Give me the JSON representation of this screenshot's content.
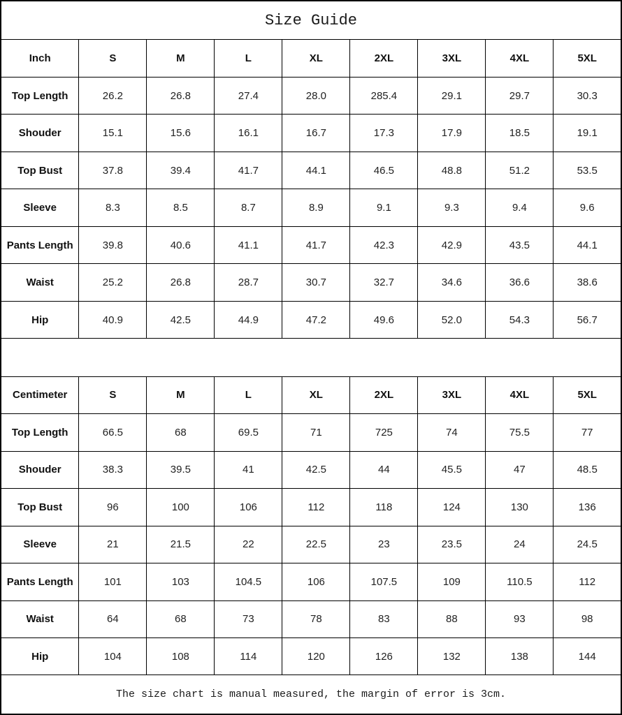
{
  "title": "Size Guide",
  "footer_note": "The size chart is manual measured, the margin of error is 3cm.",
  "colors": {
    "border": "#000000",
    "text": "#1a1a1a",
    "background": "#ffffff"
  },
  "tables": [
    {
      "unit_label": "Inch",
      "columns": [
        "S",
        "M",
        "L",
        "XL",
        "2XL",
        "3XL",
        "4XL",
        "5XL"
      ],
      "rows": [
        {
          "label": "Top Length",
          "values": [
            "26.2",
            "26.8",
            "27.4",
            "28.0",
            "285.4",
            "29.1",
            "29.7",
            "30.3"
          ]
        },
        {
          "label": "Shouder",
          "values": [
            "15.1",
            "15.6",
            "16.1",
            "16.7",
            "17.3",
            "17.9",
            "18.5",
            "19.1"
          ]
        },
        {
          "label": "Top Bust",
          "values": [
            "37.8",
            "39.4",
            "41.7",
            "44.1",
            "46.5",
            "48.8",
            "51.2",
            "53.5"
          ]
        },
        {
          "label": "Sleeve",
          "values": [
            "8.3",
            "8.5",
            "8.7",
            "8.9",
            "9.1",
            "9.3",
            "9.4",
            "9.6"
          ]
        },
        {
          "label": "Pants Length",
          "values": [
            "39.8",
            "40.6",
            "41.1",
            "41.7",
            "42.3",
            "42.9",
            "43.5",
            "44.1"
          ]
        },
        {
          "label": "Waist",
          "values": [
            "25.2",
            "26.8",
            "28.7",
            "30.7",
            "32.7",
            "34.6",
            "36.6",
            "38.6"
          ]
        },
        {
          "label": "Hip",
          "values": [
            "40.9",
            "42.5",
            "44.9",
            "47.2",
            "49.6",
            "52.0",
            "54.3",
            "56.7"
          ]
        }
      ]
    },
    {
      "unit_label": "Centimeter",
      "columns": [
        "S",
        "M",
        "L",
        "XL",
        "2XL",
        "3XL",
        "4XL",
        "5XL"
      ],
      "rows": [
        {
          "label": "Top Length",
          "values": [
            "66.5",
            "68",
            "69.5",
            "71",
            "725",
            "74",
            "75.5",
            "77"
          ]
        },
        {
          "label": "Shouder",
          "values": [
            "38.3",
            "39.5",
            "41",
            "42.5",
            "44",
            "45.5",
            "47",
            "48.5"
          ]
        },
        {
          "label": "Top Bust",
          "values": [
            "96",
            "100",
            "106",
            "112",
            "118",
            "124",
            "130",
            "136"
          ]
        },
        {
          "label": "Sleeve",
          "values": [
            "21",
            "21.5",
            "22",
            "22.5",
            "23",
            "23.5",
            "24",
            "24.5"
          ]
        },
        {
          "label": "Pants Length",
          "values": [
            "101",
            "103",
            "104.5",
            "106",
            "107.5",
            "109",
            "110.5",
            "112"
          ]
        },
        {
          "label": "Waist",
          "values": [
            "64",
            "68",
            "73",
            "78",
            "83",
            "88",
            "93",
            "98"
          ]
        },
        {
          "label": "Hip",
          "values": [
            "104",
            "108",
            "114",
            "120",
            "126",
            "132",
            "138",
            "144"
          ]
        }
      ]
    }
  ]
}
